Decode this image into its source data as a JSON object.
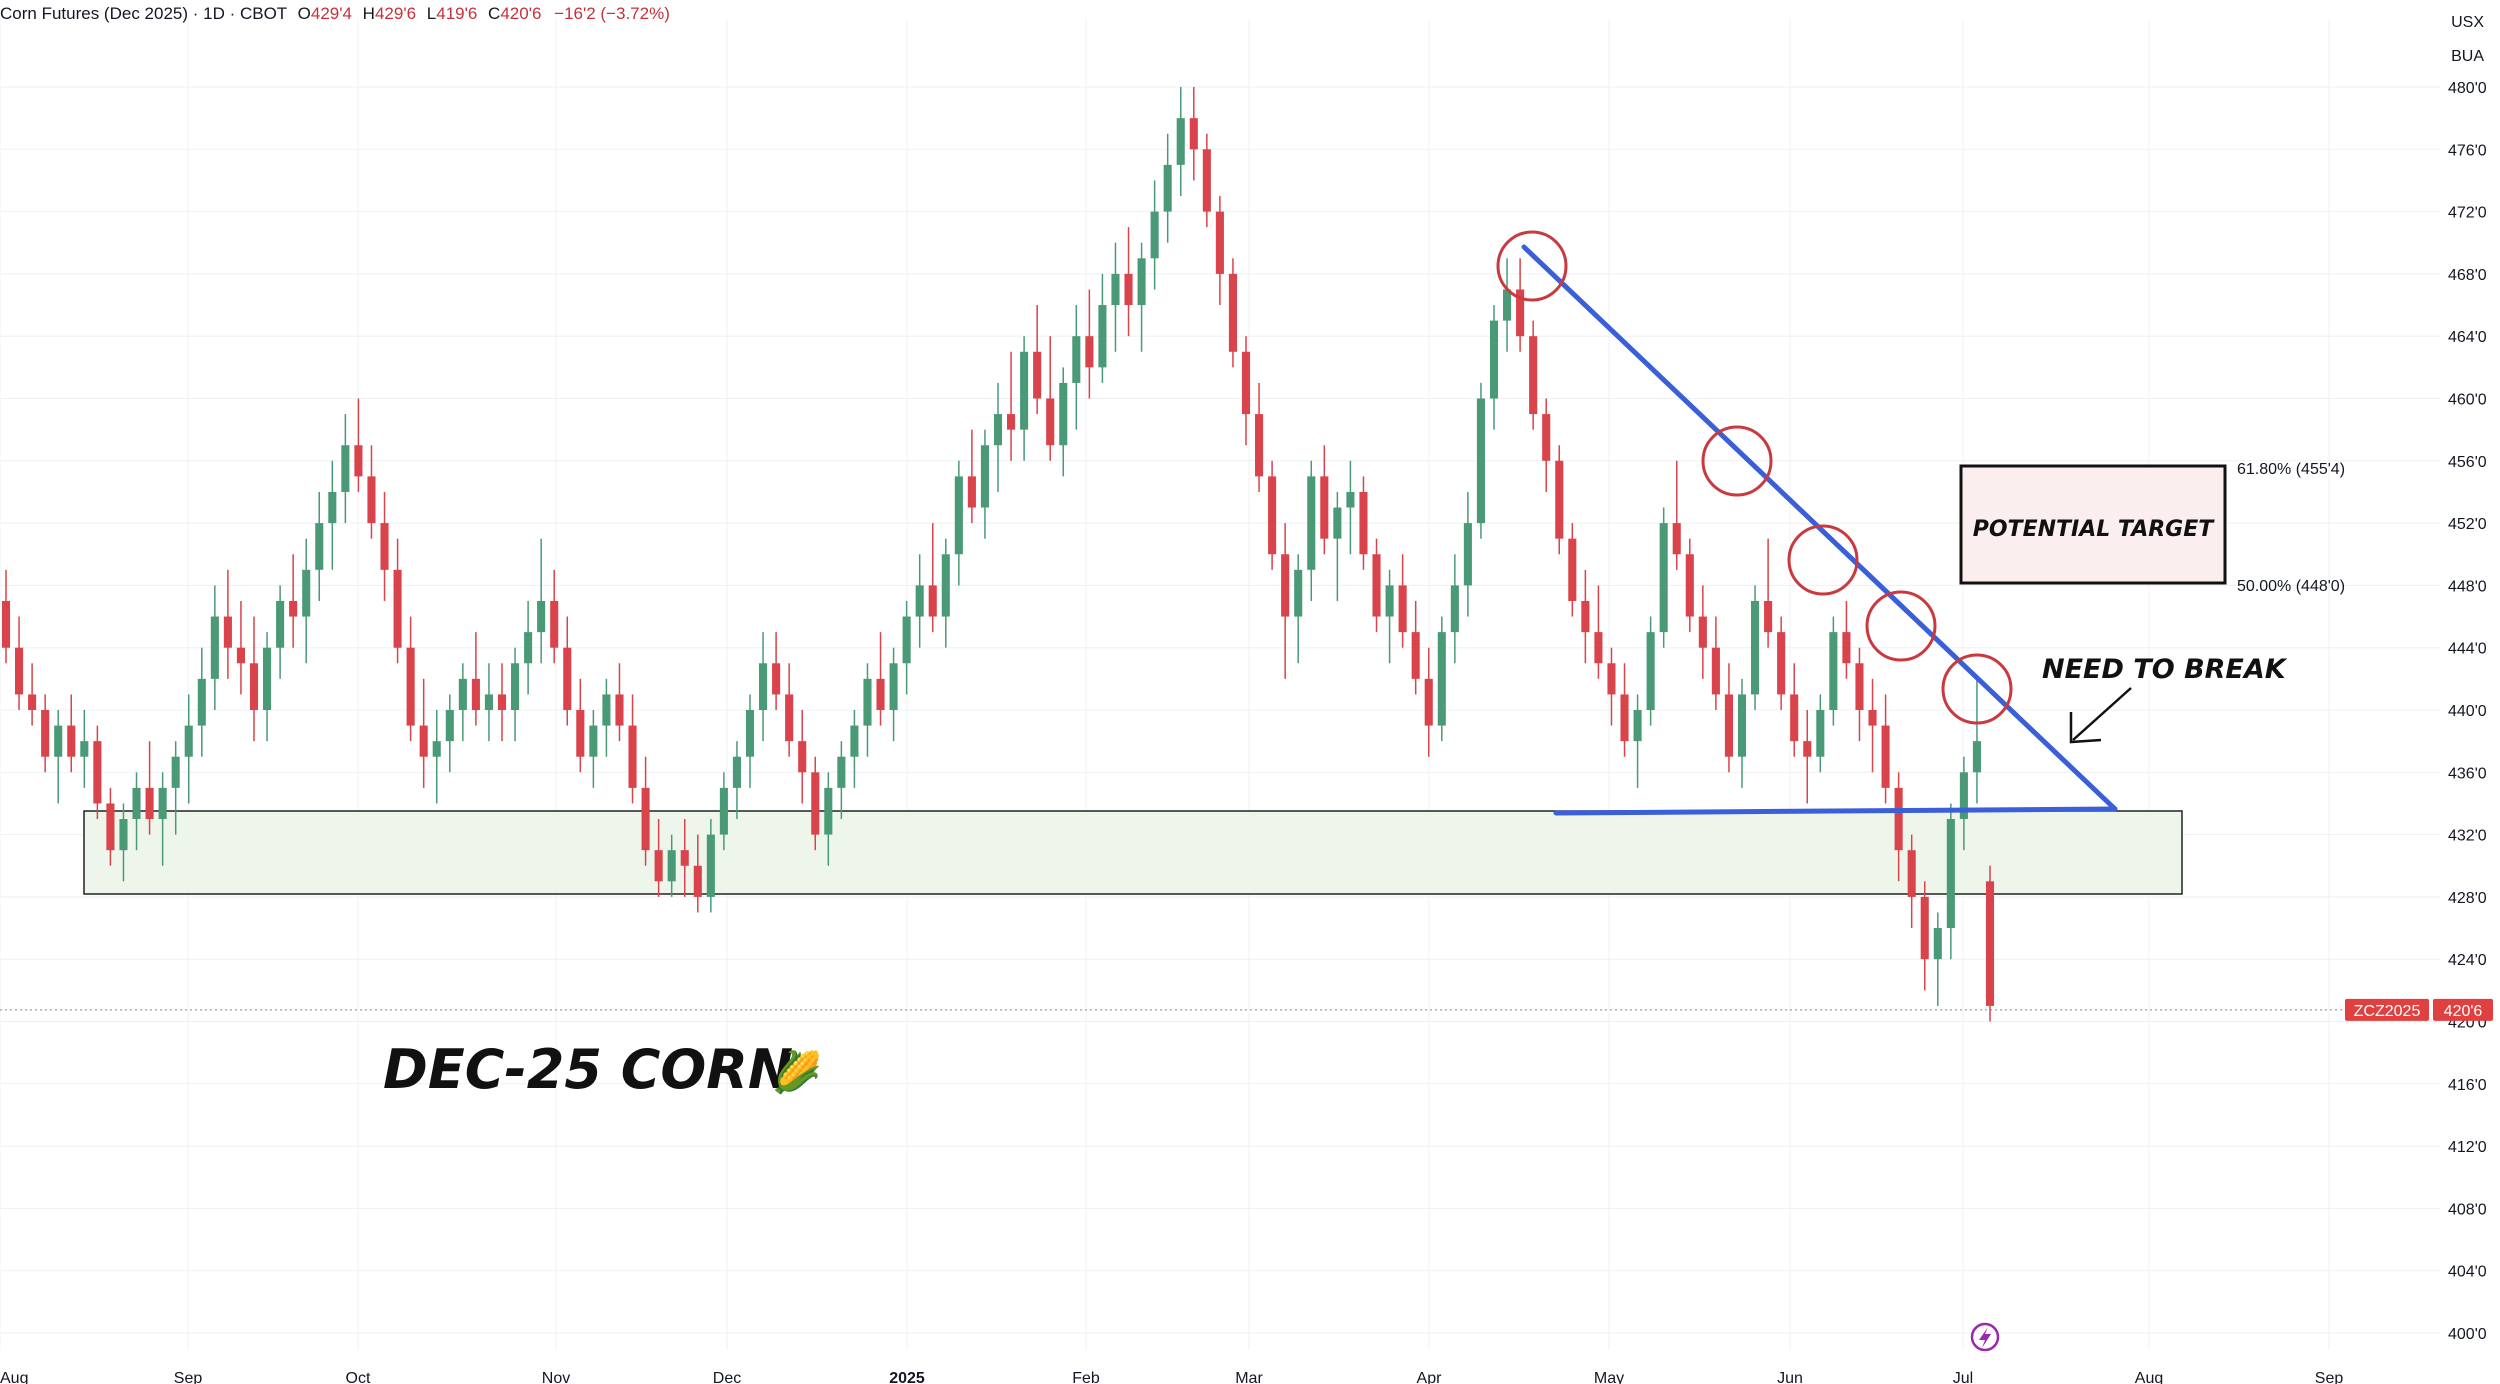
{
  "header": {
    "symbol": "Corn Futures (Dec 2025) · 1D · CBOT",
    "open_label": "O",
    "open": "429'4",
    "high_label": "H",
    "high": "429'6",
    "low_label": "L",
    "low": "419'6",
    "close_label": "C",
    "close": "420'6",
    "change": "−16'2 (−3.72%)"
  },
  "currency": {
    "line1": "USX",
    "line2": "BUA"
  },
  "chart_data": {
    "type": "candlestick",
    "x_ticks": [
      "Aug",
      "Sep",
      "Oct",
      "Nov",
      "Dec",
      "2025",
      "Feb",
      "Mar",
      "Apr",
      "May",
      "Jun",
      "Jul",
      "Aug",
      "Sep"
    ],
    "y_ticks": [
      "480'0",
      "476'0",
      "472'0",
      "468'0",
      "464'0",
      "460'0",
      "456'0",
      "452'0",
      "448'0",
      "444'0",
      "440'0",
      "436'0",
      "432'0",
      "428'0",
      "424'0",
      "420'0",
      "416'0",
      "412'0",
      "408'0",
      "404'0",
      "400'0"
    ],
    "ylim": [
      400,
      480
    ],
    "grid": true,
    "last_price_label": {
      "symbol": "ZCZ2025",
      "price": "420'6",
      "value": 420.75
    },
    "candles": [
      [
        447,
        449,
        443,
        444
      ],
      [
        444,
        446,
        440,
        441
      ],
      [
        441,
        443,
        439,
        440
      ],
      [
        440,
        441,
        436,
        437
      ],
      [
        437,
        440,
        434,
        439
      ],
      [
        439,
        441,
        436,
        437
      ],
      [
        437,
        440,
        435,
        438
      ],
      [
        438,
        439,
        433,
        434
      ],
      [
        434,
        435,
        430,
        431
      ],
      [
        431,
        434,
        429,
        433
      ],
      [
        433,
        436,
        431,
        435
      ],
      [
        435,
        438,
        432,
        433
      ],
      [
        433,
        436,
        430,
        435
      ],
      [
        435,
        438,
        432,
        437
      ],
      [
        437,
        441,
        434,
        439
      ],
      [
        439,
        444,
        437,
        442
      ],
      [
        442,
        448,
        440,
        446
      ],
      [
        446,
        449,
        442,
        444
      ],
      [
        444,
        447,
        441,
        443
      ],
      [
        443,
        446,
        438,
        440
      ],
      [
        440,
        445,
        438,
        444
      ],
      [
        444,
        448,
        442,
        447
      ],
      [
        447,
        450,
        444,
        446
      ],
      [
        446,
        451,
        443,
        449
      ],
      [
        449,
        454,
        447,
        452
      ],
      [
        452,
        456,
        449,
        454
      ],
      [
        454,
        459,
        452,
        457
      ],
      [
        457,
        460,
        454,
        455
      ],
      [
        455,
        457,
        451,
        452
      ],
      [
        452,
        454,
        447,
        449
      ],
      [
        449,
        451,
        443,
        444
      ],
      [
        444,
        446,
        438,
        439
      ],
      [
        439,
        442,
        435,
        437
      ],
      [
        437,
        440,
        434,
        438
      ],
      [
        438,
        441,
        436,
        440
      ],
      [
        440,
        443,
        438,
        442
      ],
      [
        442,
        445,
        439,
        440
      ],
      [
        440,
        443,
        438,
        441
      ],
      [
        441,
        443,
        438,
        440
      ],
      [
        440,
        444,
        438,
        443
      ],
      [
        443,
        447,
        441,
        445
      ],
      [
        445,
        451,
        443,
        447
      ],
      [
        447,
        449,
        443,
        444
      ],
      [
        444,
        446,
        439,
        440
      ],
      [
        440,
        442,
        436,
        437
      ],
      [
        437,
        440,
        435,
        439
      ],
      [
        439,
        442,
        437,
        441
      ],
      [
        441,
        443,
        438,
        439
      ],
      [
        439,
        441,
        434,
        435
      ],
      [
        435,
        437,
        430,
        431
      ],
      [
        431,
        433,
        428,
        429
      ],
      [
        429,
        432,
        428,
        431
      ],
      [
        431,
        433,
        428,
        430
      ],
      [
        430,
        432,
        427,
        428
      ],
      [
        428,
        433,
        427,
        432
      ],
      [
        432,
        436,
        431,
        435
      ],
      [
        435,
        438,
        433,
        437
      ],
      [
        437,
        441,
        435,
        440
      ],
      [
        440,
        445,
        438,
        443
      ],
      [
        443,
        445,
        440,
        441
      ],
      [
        441,
        443,
        437,
        438
      ],
      [
        438,
        440,
        434,
        436
      ],
      [
        436,
        437,
        431,
        432
      ],
      [
        432,
        436,
        430,
        435
      ],
      [
        435,
        438,
        433,
        437
      ],
      [
        437,
        440,
        435,
        439
      ],
      [
        439,
        443,
        437,
        442
      ],
      [
        442,
        445,
        439,
        440
      ],
      [
        440,
        444,
        438,
        443
      ],
      [
        443,
        447,
        441,
        446
      ],
      [
        446,
        450,
        444,
        448
      ],
      [
        448,
        452,
        445,
        446
      ],
      [
        446,
        451,
        444,
        450
      ],
      [
        450,
        456,
        448,
        455
      ],
      [
        455,
        458,
        452,
        453
      ],
      [
        453,
        458,
        451,
        457
      ],
      [
        457,
        461,
        454,
        459
      ],
      [
        459,
        463,
        456,
        458
      ],
      [
        458,
        464,
        456,
        463
      ],
      [
        463,
        466,
        459,
        460
      ],
      [
        460,
        464,
        456,
        457
      ],
      [
        457,
        462,
        455,
        461
      ],
      [
        461,
        466,
        458,
        464
      ],
      [
        464,
        467,
        460,
        462
      ],
      [
        462,
        468,
        461,
        466
      ],
      [
        466,
        470,
        463,
        468
      ],
      [
        468,
        471,
        464,
        466
      ],
      [
        466,
        470,
        463,
        469
      ],
      [
        469,
        474,
        467,
        472
      ],
      [
        472,
        477,
        470,
        475
      ],
      [
        475,
        480,
        473,
        478
      ],
      [
        478,
        480,
        474,
        476
      ],
      [
        476,
        477,
        471,
        472
      ],
      [
        472,
        473,
        466,
        468
      ],
      [
        468,
        469,
        462,
        463
      ],
      [
        463,
        464,
        457,
        459
      ],
      [
        459,
        461,
        454,
        455
      ],
      [
        455,
        456,
        449,
        450
      ],
      [
        450,
        452,
        442,
        446
      ],
      [
        446,
        450,
        443,
        449
      ],
      [
        449,
        456,
        447,
        455
      ],
      [
        455,
        457,
        450,
        451
      ],
      [
        451,
        454,
        447,
        453
      ],
      [
        453,
        456,
        450,
        454
      ],
      [
        454,
        455,
        449,
        450
      ],
      [
        450,
        451,
        445,
        446
      ],
      [
        446,
        449,
        443,
        448
      ],
      [
        448,
        450,
        444,
        445
      ],
      [
        445,
        447,
        441,
        442
      ],
      [
        442,
        444,
        437,
        439
      ],
      [
        439,
        446,
        438,
        445
      ],
      [
        445,
        450,
        443,
        448
      ],
      [
        448,
        454,
        446,
        452
      ],
      [
        452,
        461,
        451,
        460
      ],
      [
        460,
        466,
        458,
        465
      ],
      [
        465,
        469,
        463,
        467
      ],
      [
        467,
        469,
        463,
        464
      ],
      [
        464,
        465,
        458,
        459
      ],
      [
        459,
        460,
        454,
        456
      ],
      [
        456,
        457,
        450,
        451
      ],
      [
        451,
        452,
        446,
        447
      ],
      [
        447,
        449,
        443,
        445
      ],
      [
        445,
        448,
        442,
        443
      ],
      [
        443,
        444,
        439,
        441
      ],
      [
        441,
        443,
        437,
        438
      ],
      [
        438,
        441,
        435,
        440
      ],
      [
        440,
        446,
        439,
        445
      ],
      [
        445,
        453,
        444,
        452
      ],
      [
        452,
        456,
        449,
        450
      ],
      [
        450,
        451,
        445,
        446
      ],
      [
        446,
        448,
        442,
        444
      ],
      [
        444,
        446,
        440,
        441
      ],
      [
        441,
        443,
        436,
        437
      ],
      [
        437,
        442,
        435,
        441
      ],
      [
        441,
        448,
        440,
        447
      ],
      [
        447,
        451,
        444,
        445
      ],
      [
        445,
        446,
        440,
        441
      ],
      [
        441,
        443,
        437,
        438
      ],
      [
        438,
        440,
        434,
        437
      ],
      [
        437,
        441,
        436,
        440
      ],
      [
        440,
        446,
        439,
        445
      ],
      [
        445,
        447,
        442,
        443
      ],
      [
        443,
        444,
        438,
        440
      ],
      [
        440,
        442,
        436,
        439
      ],
      [
        439,
        441,
        434,
        435
      ],
      [
        435,
        436,
        429,
        431
      ],
      [
        431,
        432,
        426,
        428
      ],
      [
        428,
        429,
        422,
        424
      ],
      [
        424,
        427,
        421,
        426
      ],
      [
        426,
        434,
        424,
        433
      ],
      [
        433,
        437,
        431,
        436
      ],
      [
        436,
        442,
        434,
        438
      ],
      [
        429,
        430,
        420,
        421
      ]
    ]
  },
  "annotations": {
    "title": "DEC-25 CORN",
    "title_emoji": "🌽",
    "potential_target": "POTENTIAL TARGET",
    "need_to_break": "NEED TO BREAK",
    "fib_618": "61.80% (455'4)",
    "fib_500": "50.00% (448'0)"
  },
  "colors": {
    "up": "#4a9a78",
    "down": "#d9434b",
    "trendline": "#3a5fd9",
    "circle": "#c93a40",
    "support_zone": "#eef6ec",
    "grid": "#eef0f3",
    "price_label": "#e04040"
  }
}
